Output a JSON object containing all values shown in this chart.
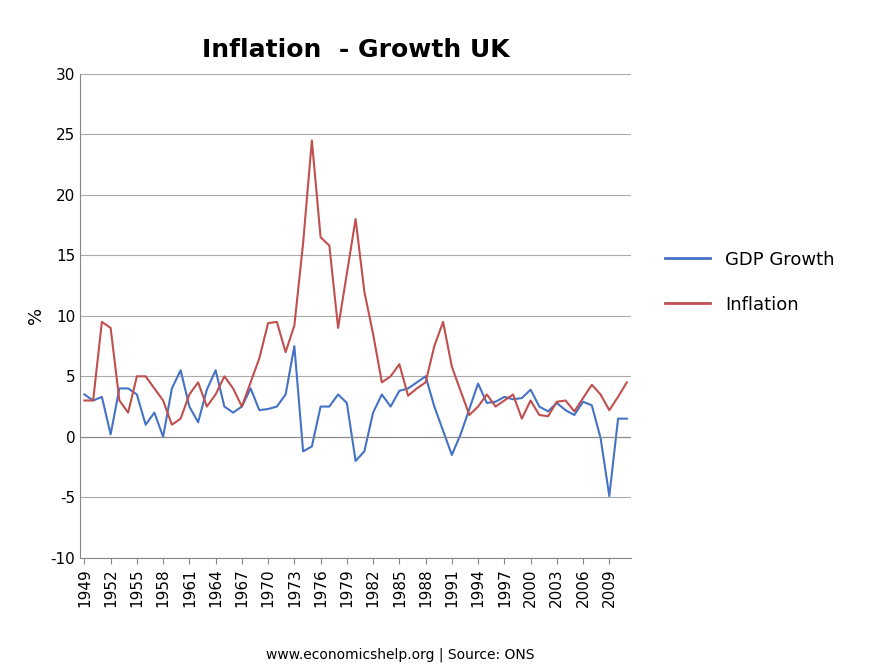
{
  "title": "Inflation  - Growth UK",
  "ylabel": "%",
  "source_text": "www.economicshelp.org | Source: ONS",
  "ylim": [
    -10,
    30
  ],
  "yticks": [
    -10,
    -5,
    0,
    5,
    10,
    15,
    20,
    25,
    30
  ],
  "gdp_color": "#4472C4",
  "inflation_color": "#C0504D",
  "legend_gdp": "GDP Growth",
  "legend_inflation": "Inflation",
  "years": [
    1949,
    1950,
    1951,
    1952,
    1953,
    1954,
    1955,
    1956,
    1957,
    1958,
    1959,
    1960,
    1961,
    1962,
    1963,
    1964,
    1965,
    1966,
    1967,
    1968,
    1969,
    1970,
    1971,
    1972,
    1973,
    1974,
    1975,
    1976,
    1977,
    1978,
    1979,
    1980,
    1981,
    1982,
    1983,
    1984,
    1985,
    1986,
    1987,
    1988,
    1989,
    1990,
    1991,
    1992,
    1993,
    1994,
    1995,
    1996,
    1997,
    1998,
    1999,
    2000,
    2001,
    2002,
    2003,
    2004,
    2005,
    2006,
    2007,
    2008,
    2009,
    2010,
    2011
  ],
  "gdp_growth": [
    3.5,
    3.0,
    3.3,
    0.2,
    4.0,
    4.0,
    3.5,
    1.0,
    2.0,
    0.0,
    4.0,
    5.5,
    2.5,
    1.2,
    3.9,
    5.5,
    2.5,
    2.0,
    2.5,
    4.0,
    2.2,
    2.3,
    2.5,
    3.5,
    7.5,
    -1.2,
    -0.8,
    2.5,
    2.5,
    3.5,
    2.8,
    -2.0,
    -1.2,
    2.0,
    3.5,
    2.5,
    3.8,
    4.0,
    4.5,
    5.0,
    2.5,
    0.5,
    -1.5,
    0.2,
    2.3,
    4.4,
    2.8,
    2.9,
    3.3,
    3.1,
    3.2,
    3.9,
    2.5,
    2.1,
    2.8,
    2.2,
    1.8,
    2.9,
    2.6,
    -0.1,
    -4.9,
    1.5,
    1.5
  ],
  "inflation": [
    3.0,
    3.0,
    9.5,
    9.0,
    3.0,
    2.0,
    5.0,
    5.0,
    4.0,
    3.0,
    1.0,
    1.5,
    3.5,
    4.5,
    2.5,
    3.5,
    5.0,
    4.0,
    2.5,
    4.5,
    6.5,
    9.4,
    9.5,
    7.0,
    9.2,
    16.0,
    24.5,
    16.5,
    15.8,
    9.0,
    13.5,
    18.0,
    12.0,
    8.5,
    4.5,
    5.0,
    6.0,
    3.4,
    4.0,
    4.5,
    7.5,
    9.5,
    5.8,
    3.8,
    1.8,
    2.5,
    3.5,
    2.5,
    3.0,
    3.5,
    1.5,
    3.0,
    1.8,
    1.7,
    2.9,
    3.0,
    2.1,
    3.2,
    4.3,
    3.5,
    2.2,
    3.3,
    4.5
  ],
  "title_fontsize": 18,
  "tick_fontsize": 11,
  "ylabel_fontsize": 13,
  "legend_fontsize": 13
}
